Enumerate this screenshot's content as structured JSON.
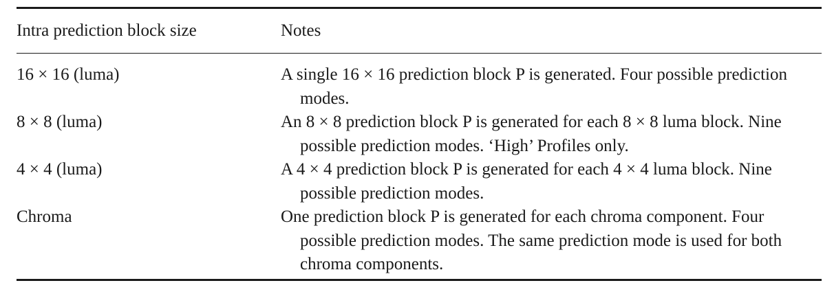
{
  "table": {
    "headers": {
      "size": "Intra prediction block size",
      "notes": "Notes"
    },
    "rows": [
      {
        "size": "16 × 16 (luma)",
        "notes": "A single 16 × 16 prediction block P is generated. Four possible prediction modes."
      },
      {
        "size": "8 × 8 (luma)",
        "notes": "An 8 × 8 prediction block P is generated for each 8 × 8 luma block. Nine possible prediction modes. ‘High’ Profiles only."
      },
      {
        "size": "4 × 4 (luma)",
        "notes": "A 4 × 4 prediction block P is generated for each 4 × 4 luma block. Nine possible prediction modes."
      },
      {
        "size": "Chroma",
        "notes": "One prediction block P is generated for each chroma component. Four possible prediction modes. The same prediction mode is used for both chroma components."
      }
    ]
  }
}
